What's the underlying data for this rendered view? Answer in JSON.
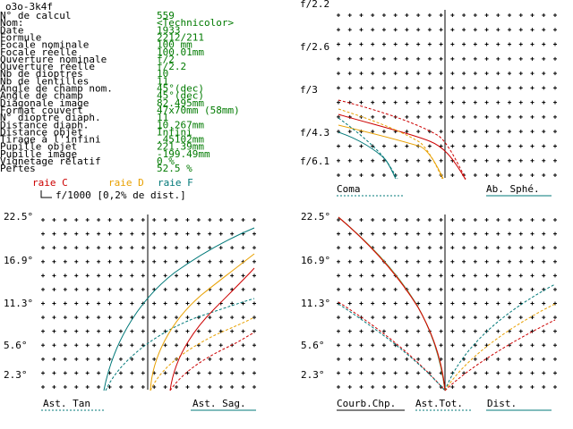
{
  "title": "o3o-3k4f",
  "params": [
    {
      "label": "N° de calcul",
      "value": "559"
    },
    {
      "label": "Nom:",
      "value": "<Technicolor>"
    },
    {
      "label": "Date",
      "value": "1933"
    },
    {
      "label": "Formule",
      "value": "2212/211"
    },
    {
      "label": "Focale nominale",
      "value": "100   mm"
    },
    {
      "label": "Focale réelle",
      "value": "100.01mm"
    },
    {
      "label": "Ouverture nominale",
      "value": "f/2"
    },
    {
      "label": "Ouverture réelle",
      "value": "f/2.2"
    },
    {
      "label": "Nb de dioptres",
      "value": "10"
    },
    {
      "label": "Nb de lentilles",
      "value": "11"
    },
    {
      "label": "Angle de champ nom.",
      "value": "45°(dec)"
    },
    {
      "label": "Angle de champ",
      "value": "45°(dec)"
    },
    {
      "label": "Diagonale image",
      "value": "82.495mm"
    },
    {
      "label": "Format couvert",
      "value": "47x70mm (58mm)"
    },
    {
      "label": "N° dioptre diaph.",
      "value": "11"
    },
    {
      "label": "Distance diaph.",
      "value": "10.267mm"
    },
    {
      "label": "Distance objet",
      "value": "Infini"
    },
    {
      "label": "Tirage à l'infini",
      "value": ".45102mm"
    },
    {
      "label": "Pupille objet",
      "value": "221.39mm"
    },
    {
      "label": "Pupille image",
      "value": "-199.49mm"
    },
    {
      "label": "Vignetage relatif",
      "value": "0 %"
    },
    {
      "label": "Pertes",
      "value": "52.5 %"
    }
  ],
  "legend": {
    "c": "raie C",
    "d": "raie D",
    "f": "raie F",
    "colors": {
      "c": "#cc0000",
      "d": "#e8a000",
      "f": "#007878"
    }
  },
  "scale_note": "f/1000 [0,2% de dist.]",
  "aperture_ticks": [
    "f/2.2",
    "f/2.6",
    "f/3",
    "f/4.3",
    "f/6.1"
  ],
  "field_ticks": [
    "22.5°",
    "16.9°",
    "11.3°",
    "5.6°",
    "2.3°"
  ],
  "panels": {
    "coma": "Coma",
    "spherical": "Ab. Sphé.",
    "ast_tan": "Ast. Tan",
    "ast_sag": "Ast. Sag.",
    "field_curv": "Courb.Chp.",
    "ast_tot": "Ast.Tot.",
    "distortion": "Dist."
  },
  "chart_data": [
    {
      "type": "line",
      "title": "Ab. Sphé.",
      "y_ticks": [
        "f/2.2",
        "f/2.6",
        "f/3",
        "f/4.3",
        "f/6.1"
      ],
      "series": [
        {
          "name": "raie C",
          "points": [
            [
              0.03,
              1.0
            ],
            [
              0.035,
              0.75
            ],
            [
              0.028,
              0.55
            ],
            [
              0.015,
              0.3
            ],
            [
              0.0,
              0.0
            ]
          ]
        },
        {
          "name": "raie D",
          "points": [
            [
              0.0,
              1.0
            ],
            [
              0.005,
              0.75
            ],
            [
              0.0,
              0.55
            ],
            [
              -0.01,
              0.3
            ],
            [
              -0.025,
              0.0
            ]
          ]
        },
        {
          "name": "raie F",
          "points": [
            [
              -0.05,
              1.0
            ],
            [
              -0.045,
              0.75
            ],
            [
              -0.05,
              0.55
            ],
            [
              -0.06,
              0.3
            ],
            [
              -0.075,
              0.0
            ]
          ]
        }
      ]
    },
    {
      "type": "line",
      "title": "Ast. Tan / Ast. Sag.",
      "y_ticks": [
        "22.5°",
        "16.9°",
        "11.3°",
        "5.6°",
        "2.3°"
      ],
      "series": [
        {
          "name": "raie F",
          "points": [
            [
              -0.05,
              0
            ],
            [
              0.06,
              10
            ],
            [
              0.12,
              17
            ],
            [
              0.17,
              22.5
            ]
          ]
        },
        {
          "name": "raie D",
          "points": [
            [
              0.01,
              0
            ],
            [
              0.06,
              8
            ],
            [
              0.11,
              14
            ],
            [
              0.15,
              20
            ]
          ]
        },
        {
          "name": "raie C",
          "points": [
            [
              0.03,
              0
            ],
            [
              0.07,
              7
            ],
            [
              0.11,
              12
            ],
            [
              0.14,
              16
            ]
          ]
        }
      ]
    },
    {
      "type": "line",
      "title": "Courb.Chp. / Ast.Tot. / Dist.",
      "y_ticks": [
        "22.5°",
        "16.9°",
        "11.3°",
        "5.6°",
        "2.3°"
      ],
      "series": [
        {
          "name": "Courb.Chp.",
          "points": [
            [
              -0.15,
              22.5
            ],
            [
              -0.06,
              16
            ],
            [
              -0.02,
              9
            ],
            [
              0.0,
              0
            ]
          ]
        },
        {
          "name": "Ast.Tot.",
          "points": [
            [
              -0.14,
              13
            ],
            [
              -0.06,
              7
            ],
            [
              0.0,
              0
            ]
          ]
        },
        {
          "name": "Dist.",
          "points": [
            [
              0.0,
              0
            ],
            [
              0.05,
              6
            ],
            [
              0.1,
              10
            ],
            [
              0.15,
              13
            ]
          ]
        }
      ]
    }
  ]
}
